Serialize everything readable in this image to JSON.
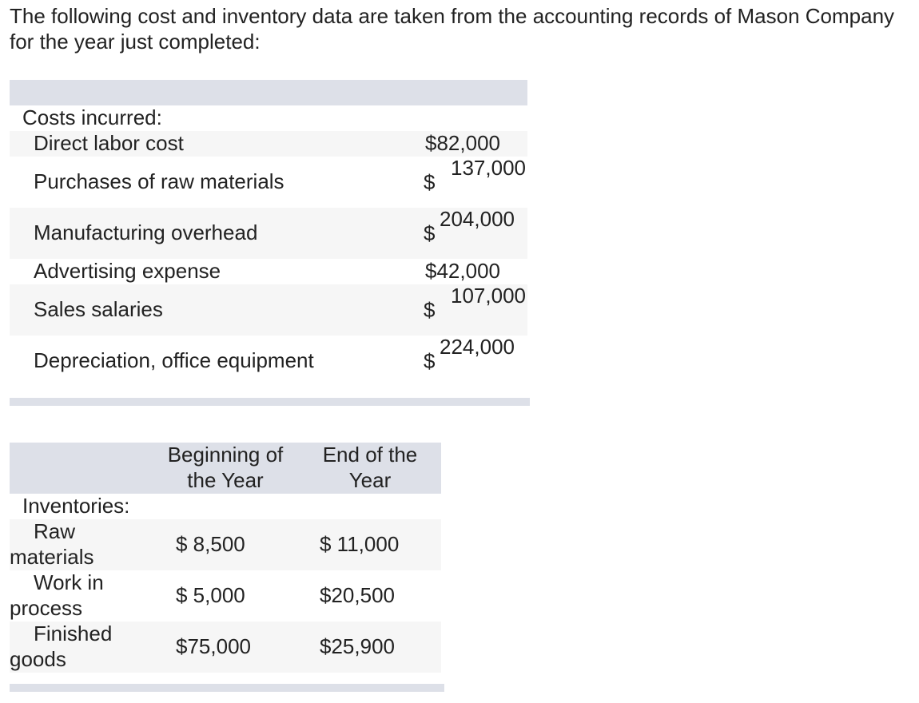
{
  "intro": "The following cost and inventory data are taken from the accounting records of Mason Company for the year just completed:",
  "costs": {
    "section_label": "Costs incurred:",
    "rows": [
      {
        "label": "Direct labor cost",
        "amount": "82,000"
      },
      {
        "label": "Purchases of raw materials",
        "amount": "137,000"
      },
      {
        "label": "Manufacturing overhead",
        "amount": "204,000"
      },
      {
        "label": "Advertising expense",
        "amount": "42,000"
      },
      {
        "label": "Sales salaries",
        "amount": "107,000"
      },
      {
        "label": "Depreciation, office equipment",
        "amount": "224,000"
      }
    ],
    "currency": "$"
  },
  "inventories": {
    "headers": {
      "begin": "Beginning of the Year",
      "end": "End of the Year"
    },
    "section_label": "Inventories:",
    "rows": [
      {
        "label_line1": "Raw",
        "label_line2": "materials",
        "begin": "$ 8,500",
        "end": "$ 11,000"
      },
      {
        "label_line1": "Work in",
        "label_line2": "process",
        "begin": "$ 5,000",
        "end": "$20,500"
      },
      {
        "label_line1": "Finished",
        "label_line2": "goods",
        "begin": "$75,000",
        "end": "$25,900"
      }
    ]
  }
}
